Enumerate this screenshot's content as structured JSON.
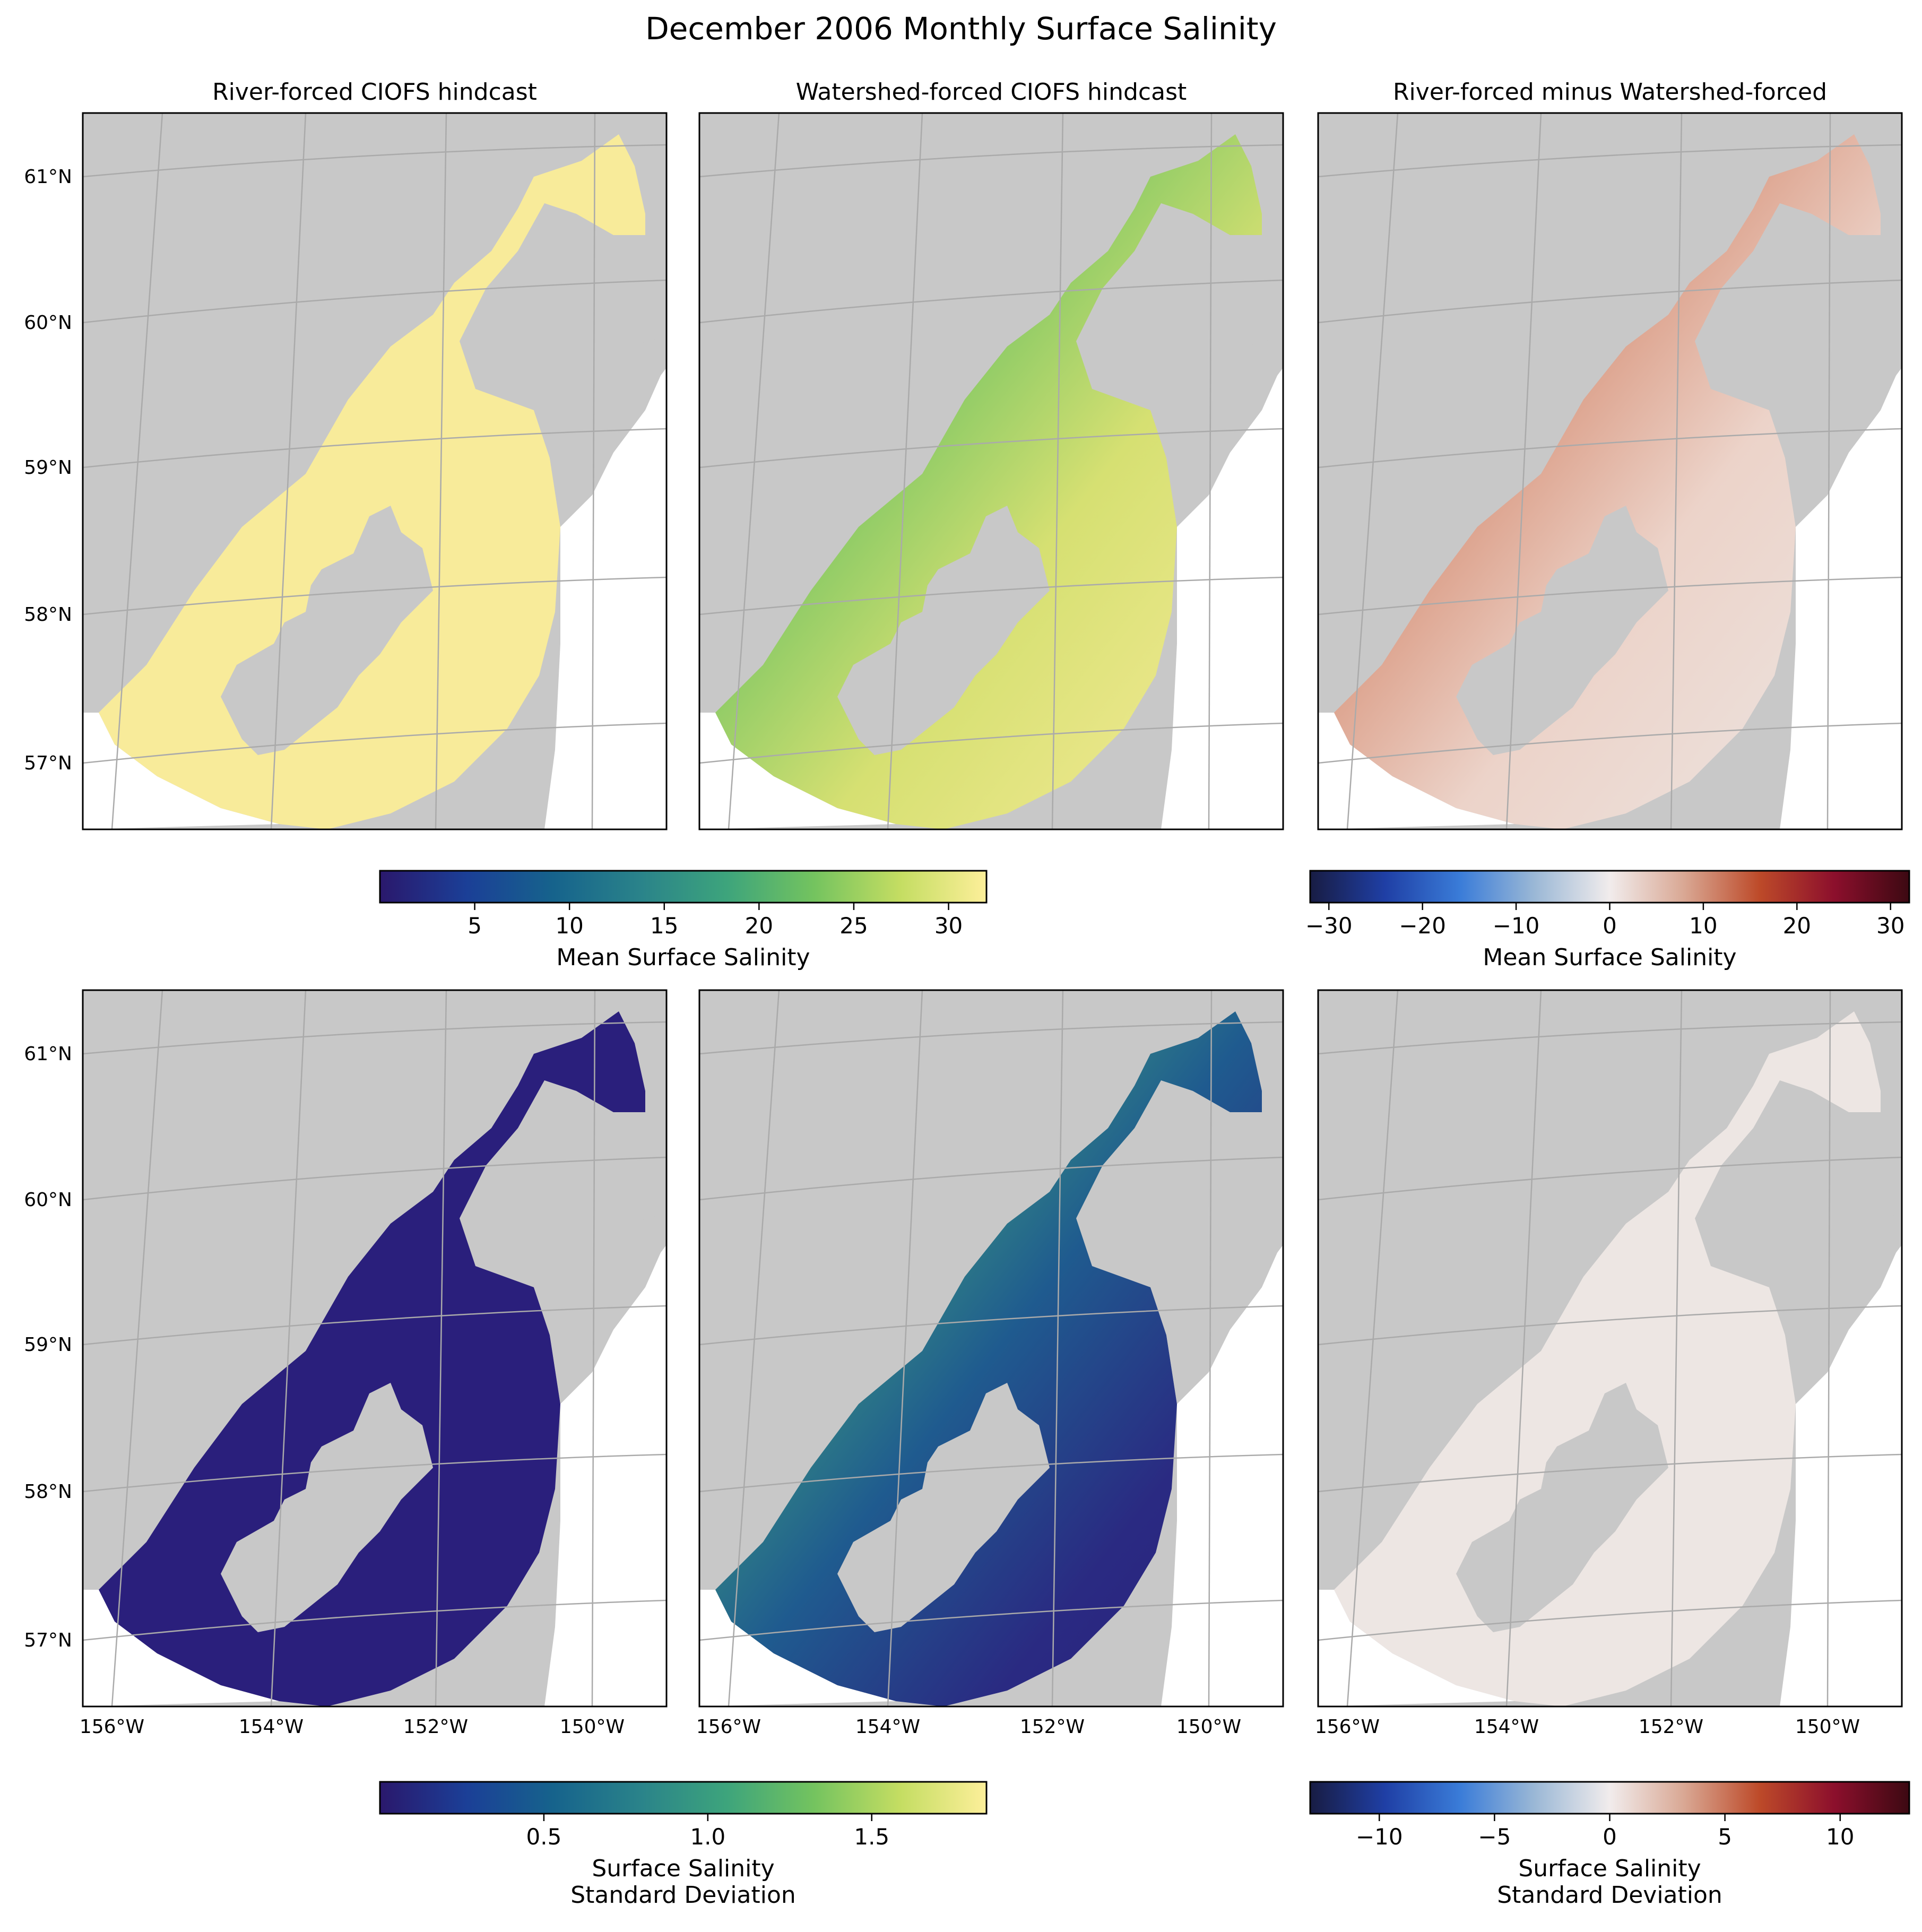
{
  "figure": {
    "title": "December 2006 Monthly Surface Salinity"
  },
  "panels": [
    {
      "title": "River-forced CIOFS hindcast",
      "row": "top",
      "field": "mean",
      "source": "river"
    },
    {
      "title": "Watershed-forced CIOFS hindcast",
      "row": "top",
      "field": "mean",
      "source": "watershed"
    },
    {
      "title": "River-forced minus Watershed-forced",
      "row": "top",
      "field": "mean",
      "source": "difference"
    },
    {
      "title": "",
      "row": "bottom",
      "field": "std",
      "source": "river"
    },
    {
      "title": "",
      "row": "bottom",
      "field": "std",
      "source": "watershed"
    },
    {
      "title": "",
      "row": "bottom",
      "field": "std",
      "source": "difference"
    }
  ],
  "lat_labels": [
    "61°N",
    "60°N",
    "59°N",
    "58°N",
    "57°N"
  ],
  "lon_labels": [
    "156°W",
    "154°W",
    "152°W",
    "150°W"
  ],
  "colorbars": {
    "mean": {
      "label": "Mean Surface Salinity",
      "ticks": [
        "5",
        "10",
        "15",
        "20",
        "25",
        "30"
      ],
      "range": [
        0,
        32
      ],
      "colormap": "haline"
    },
    "mean_diff": {
      "label": "Mean Surface Salinity",
      "ticks": [
        "−30",
        "−20",
        "−10",
        "0",
        "10",
        "20",
        "30"
      ],
      "range": [
        -32,
        32
      ],
      "colormap": "balance"
    },
    "std": {
      "label_line1": "Surface Salinity",
      "label_line2": "Standard Deviation",
      "ticks": [
        "0.5",
        "1.0",
        "1.5"
      ],
      "range": [
        0,
        1.85
      ],
      "colormap": "haline"
    },
    "std_diff": {
      "label_line1": "Surface Salinity",
      "label_line2": "Standard Deviation",
      "ticks": [
        "−10",
        "−5",
        "0",
        "5",
        "10"
      ],
      "range": [
        -13,
        13
      ],
      "colormap": "balance"
    }
  },
  "colors": {
    "land": "#c8c8c8",
    "grid": "#aaaaaa",
    "river_mean_fill": "#f8eb9a",
    "watershed_mean_fill": "#f8eb9a",
    "diff_fill": "#ede6e3",
    "std_fill": "#2a1f7c",
    "haline_stops": [
      "#2a186c",
      "#1b3f97",
      "#16638c",
      "#2a838a",
      "#3da47c",
      "#73c35f",
      "#c4dd62",
      "#fdef9a"
    ],
    "balance_stops": [
      "#181c43",
      "#1f3fa5",
      "#3a7cd8",
      "#9bb8d6",
      "#f1ecec",
      "#d9a793",
      "#bd4a29",
      "#8c0f2c",
      "#3c0912"
    ]
  }
}
